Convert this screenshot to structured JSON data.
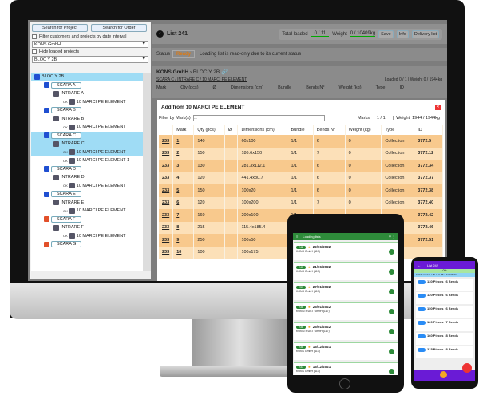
{
  "left": {
    "search_project": "Search for Project",
    "search_order": "Search for Order",
    "filter_label": "Filter customers and projects by date interval",
    "customer": "KONS GmbH",
    "hide_loaded": "Hide loaded projects",
    "project": "BLOC Y 2B",
    "tree": [
      {
        "label": "BLOC Y 2B",
        "level": 0,
        "kind": "root",
        "hl": true
      },
      {
        "label": "SCARA A",
        "level": 1,
        "kind": "scara",
        "color": "#1f4fd1"
      },
      {
        "label": "INTRARE A",
        "level": 2,
        "kind": "intrare"
      },
      {
        "label": "10 MARCI PE ELEMENT",
        "level": 3,
        "kind": "element",
        "status": "OK"
      },
      {
        "label": "SCARA B",
        "level": 1,
        "kind": "scara",
        "color": "#1f4fd1"
      },
      {
        "label": "INTRARE B",
        "level": 2,
        "kind": "intrare"
      },
      {
        "label": "10 MARCI PE ELEMENT",
        "level": 3,
        "kind": "element",
        "status": "OK"
      },
      {
        "label": "SCARA C",
        "level": 1,
        "kind": "scara",
        "color": "#1f4fd1",
        "hl": true
      },
      {
        "label": "INTRARE C",
        "level": 2,
        "kind": "intrare",
        "hl": true
      },
      {
        "label": "10 MARCI PE ELEMENT",
        "level": 3,
        "kind": "element",
        "status": "OK",
        "hl": true
      },
      {
        "label": "10 MARCI PE ELEMENT 1",
        "level": 3,
        "kind": "element",
        "status": "OK"
      },
      {
        "label": "SCARA D",
        "level": 1,
        "kind": "scara",
        "color": "#1f4fd1"
      },
      {
        "label": "INTRARE D",
        "level": 2,
        "kind": "intrare"
      },
      {
        "label": "10 MARCI PE ELEMENT",
        "level": 3,
        "kind": "element",
        "status": "OK"
      },
      {
        "label": "SCARA E",
        "level": 1,
        "kind": "scara",
        "color": "#1f4fd1"
      },
      {
        "label": "INTRARE E",
        "level": 2,
        "kind": "intrare"
      },
      {
        "label": "10 MARCI PE ELEMENT",
        "level": 3,
        "kind": "element",
        "status": "OK"
      },
      {
        "label": "SCARA F",
        "level": 1,
        "kind": "scara",
        "color": "#e2502a"
      },
      {
        "label": "INTRARE F",
        "level": 2,
        "kind": "intrare"
      },
      {
        "label": "10 MARCI PE ELEMENT",
        "level": 3,
        "kind": "element",
        "status": "OK"
      },
      {
        "label": "SCARA G",
        "level": 1,
        "kind": "scara",
        "color": "#e2502a"
      }
    ]
  },
  "header": {
    "title": "List 241",
    "total_loaded_label": "Total loaded",
    "total_loaded": "0 / 11",
    "weight_label": "Weight",
    "weight": "0 / 10409kg",
    "save": "Save",
    "info": "Info",
    "delivery": "Delivery list"
  },
  "status": {
    "label": "Status",
    "value": "Ready",
    "message": "Loading list is read-only due to its current status"
  },
  "breadcrumb": {
    "customer": "KONS GmbH",
    "project": "BLOC Y 2B",
    "path": "SCARA C / INTRARE C / 10 MARCI PE ELEMENT",
    "loaded_label": "Loaded",
    "loaded": "0 / 1",
    "weight_label": "Weight",
    "weight": "0 / 1944kg"
  },
  "columns": [
    "Mark",
    "Qty (pcs)",
    "Ø",
    "Dimensions (cm)",
    "Bundle",
    "Bends N°",
    "Weight (kg)",
    "Type",
    "ID"
  ],
  "modal": {
    "title": "Add from 10 MARCI PE ELEMENT",
    "filter_label": "Filter by Mark(s)",
    "filter_placeholder": "...",
    "marks_label": "Marks",
    "marks": "1 / 1",
    "weight_label": "Weight",
    "weight": "1944 / 1944kg",
    "rows": [
      [
        "233",
        "1",
        "140",
        "",
        "60x100",
        "1/1",
        "6",
        "0",
        "Collection",
        "3772.5"
      ],
      [
        "233",
        "2",
        "150",
        "",
        "186.6x150",
        "1/1",
        "7",
        "0",
        "Collection",
        "3772.12"
      ],
      [
        "233",
        "3",
        "130",
        "",
        "281.3x112.1",
        "1/1",
        "6",
        "0",
        "Collection",
        "3772.34"
      ],
      [
        "233",
        "4",
        "120",
        "",
        "441.4x80.7",
        "1/1",
        "6",
        "0",
        "Collection",
        "3772.37"
      ],
      [
        "233",
        "5",
        "150",
        "",
        "100x20",
        "1/1",
        "6",
        "0",
        "Collection",
        "3772.38"
      ],
      [
        "233",
        "6",
        "120",
        "",
        "100x200",
        "1/1",
        "7",
        "0",
        "Collection",
        "3772.40"
      ],
      [
        "233",
        "7",
        "160",
        "",
        "200x100",
        "1/1",
        "",
        "",
        "",
        "3772.42"
      ],
      [
        "233",
        "8",
        "215",
        "",
        "115.4x185.4",
        "1/1",
        "",
        "",
        "",
        "3772.46"
      ],
      [
        "233",
        "9",
        "250",
        "",
        "100x50",
        "1/1",
        "",
        "",
        "",
        "3772.51"
      ],
      [
        "233",
        "10",
        "100",
        "",
        "100x175",
        "1/1",
        "",
        "",
        "",
        ""
      ]
    ]
  },
  "tablet": {
    "title": "Loading lists",
    "items": [
      {
        "id": "242",
        "date": "22/06/2022",
        "customer": "KONS GmbH (117)"
      },
      {
        "id": "240",
        "date": "21/06/2022",
        "customer": "KONS GmbH (117)"
      },
      {
        "id": "239",
        "date": "27/01/2022",
        "customer": "KONS GmbH (117)"
      },
      {
        "id": "238",
        "date": "26/01/2022",
        "customer": "KONSTRUCT GmbH (117)"
      },
      {
        "id": "238",
        "date": "26/01/2022",
        "customer": "KONSTRUCT GmbH (117)"
      },
      {
        "id": "238",
        "date": "16/12/2021",
        "customer": "KONS GmbH (117)"
      },
      {
        "id": "237",
        "date": "16/12/2021",
        "customer": "KONS GmbH (117)"
      }
    ]
  },
  "phone": {
    "title": "List 242",
    "progress": "0%",
    "path": "KONS GmbH > BLC Y 2B > ELEMENT",
    "items": [
      {
        "pieces": "130 Pieces",
        "bends": "6 Bends"
      },
      {
        "pieces": "120 Pieces",
        "bends": "6 Bends"
      },
      {
        "pieces": "150 Pieces",
        "bends": "6 Bends"
      },
      {
        "pieces": "120 Pieces",
        "bends": "7 Bends"
      },
      {
        "pieces": "160 Pieces",
        "bends": "8 Bends"
      },
      {
        "pieces": "215 Pieces",
        "bends": "8 Bends"
      }
    ]
  },
  "colors": {
    "accent": "#f8c98d",
    "tablet_green": "#2e8b3a",
    "phone_purple": "#6a1bd6",
    "selection": "#9fdcf5"
  }
}
